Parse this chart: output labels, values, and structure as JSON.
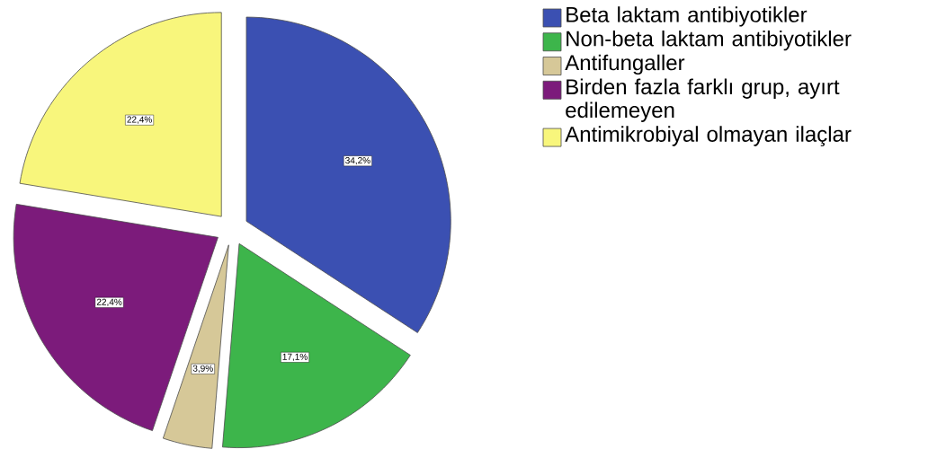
{
  "chart_data": {
    "type": "pie",
    "categories": [
      "Beta laktam antibiyotikler",
      "Non-beta laktam antibiyotikler",
      "Antifungaller",
      "Birden fazla farklı grup, ayırt edilemeyen",
      "Antimikrobiyal olmayan ilaçlar"
    ],
    "values": [
      34.2,
      17.1,
      3.9,
      22.4,
      22.4
    ],
    "value_labels": [
      "34,2%",
      "17,1%",
      "3,9%",
      "22,4%",
      "22,4%"
    ],
    "colors": [
      "#3b50b2",
      "#3db54b",
      "#d6c898",
      "#7c1b7b",
      "#f8f67c"
    ],
    "legend": "right"
  }
}
